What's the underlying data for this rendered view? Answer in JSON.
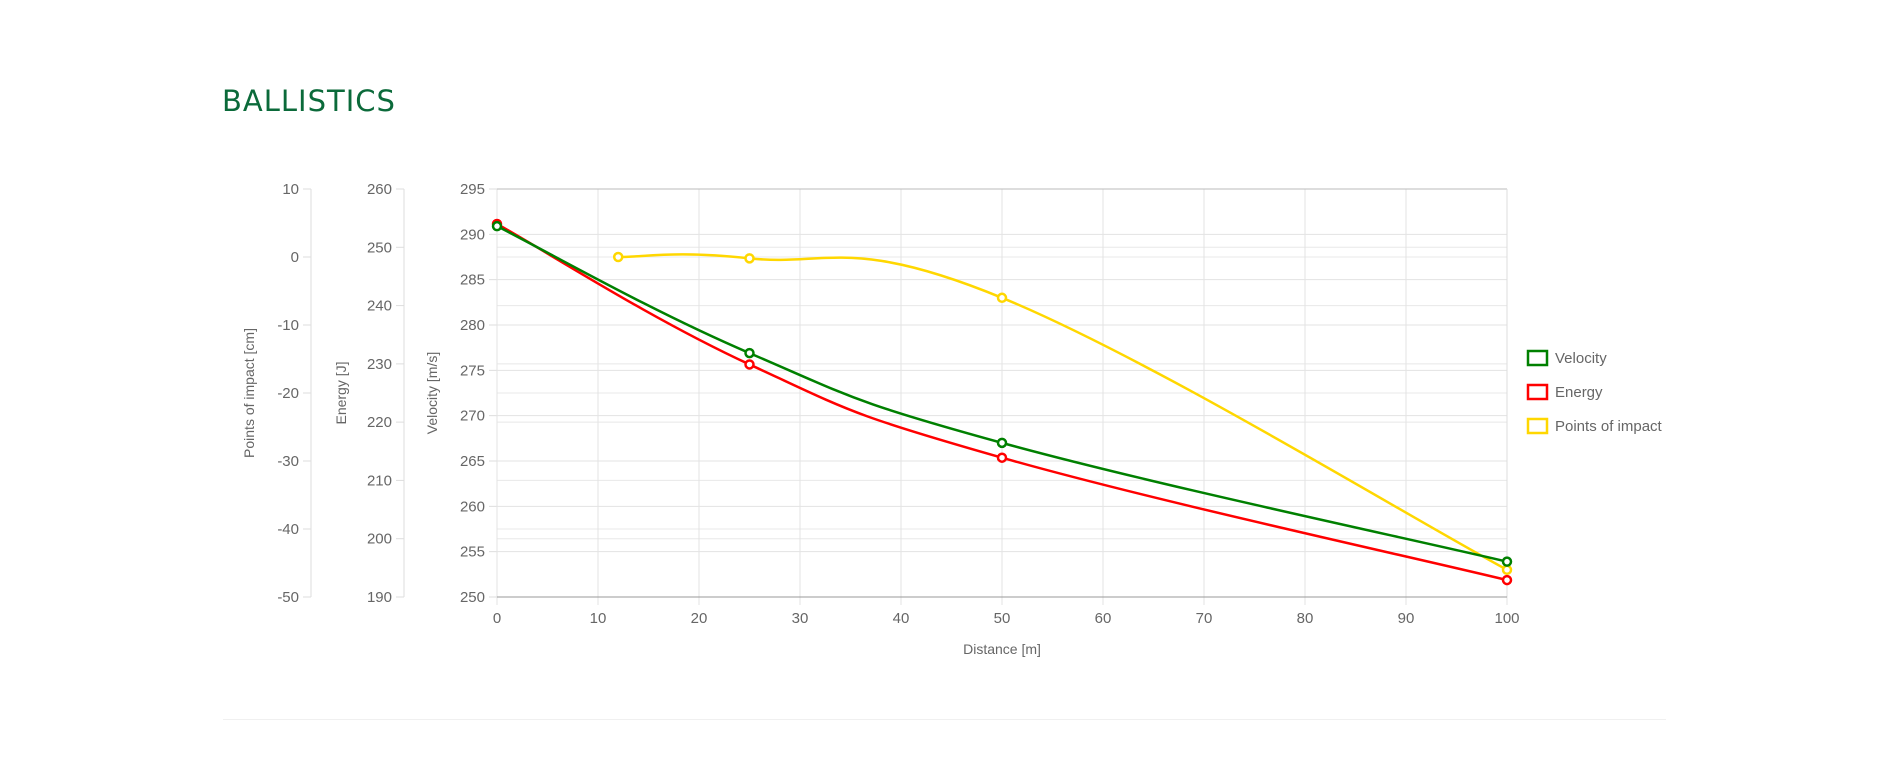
{
  "page": {
    "title": "BALLISTICS"
  },
  "chart_data": {
    "type": "line",
    "xlabel": "Distance [m]",
    "xlim": [
      0,
      100
    ],
    "xticks": [
      0,
      10,
      20,
      30,
      40,
      50,
      60,
      70,
      80,
      90,
      100
    ],
    "grid": true,
    "legend_position": "right",
    "axes": [
      {
        "id": "poi",
        "label": "Points of impact [cm]",
        "range": [
          -50,
          10
        ],
        "ticks": [
          10,
          0,
          -10,
          -20,
          -30,
          -40,
          -50
        ]
      },
      {
        "id": "energy",
        "label": "Energy [J]",
        "range": [
          190,
          260
        ],
        "ticks": [
          260,
          250,
          240,
          230,
          220,
          210,
          200,
          190
        ]
      },
      {
        "id": "velocity",
        "label": "Velocity [m/s]",
        "range": [
          250,
          295
        ],
        "ticks": [
          295,
          290,
          285,
          280,
          275,
          270,
          265,
          260,
          255,
          250
        ]
      }
    ],
    "series": [
      {
        "name": "Velocity",
        "axis": "velocity",
        "color": "#008000",
        "x": [
          0,
          25,
          50,
          100
        ],
        "y": [
          290.9,
          276.9,
          267.0,
          253.9
        ]
      },
      {
        "name": "Energy",
        "axis": "energy",
        "color": "#ff0000",
        "x": [
          0,
          25,
          50,
          100
        ],
        "y": [
          254.0,
          229.9,
          213.9,
          192.9
        ]
      },
      {
        "name": "Points of impact",
        "axis": "poi",
        "color": "#ffd700",
        "x": [
          12,
          25,
          50,
          100
        ],
        "y": [
          0.0,
          -0.2,
          -6.0,
          -46.0
        ]
      }
    ]
  }
}
